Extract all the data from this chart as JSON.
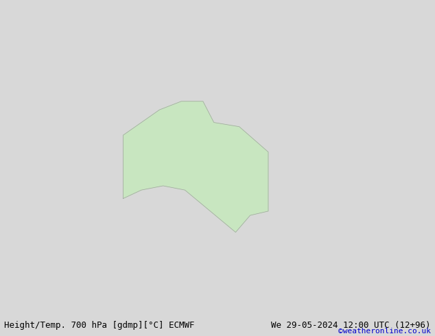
{
  "title_left": "Height/Temp. 700 hPa [gdmp][°C] ECMWF",
  "title_right": "We 29-05-2024 12:00 UTC (12+96)",
  "credit": "©weatheronline.co.uk",
  "bg_color": "#d8d8d8",
  "land_color": "#c8e6c0",
  "land_border_color": "#a0a0a0",
  "ocean_color": "#d8d8d8",
  "map_extent": [
    80,
    200,
    -60,
    10
  ],
  "height_contour_color": "#000000",
  "height_contour_thick_color": "#000000",
  "temp_neg_strong_color": "#ff8c00",
  "temp_neg_mild_color": "#cc0000",
  "temp_zero_color": "#cc00cc",
  "title_fontsize": 9,
  "credit_fontsize": 8,
  "credit_color": "#0000cc"
}
